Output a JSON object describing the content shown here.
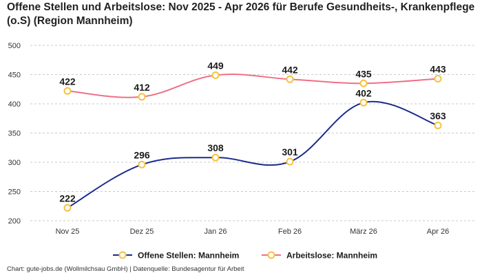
{
  "title": "Offene Stellen und Arbeitslose: Nov 2025 - Apr 2026 für Berufe Gesundheits-, Krankenpflege (o.S) (Region Mannheim)",
  "credit": "Chart: gute-jobs.de (Wollmilchsau GmbH) | Datenquelle: Bundesagentur für Arbeit",
  "chart_data": {
    "type": "line",
    "categories": [
      "Nov 25",
      "Dez 25",
      "Jan 26",
      "Feb 26",
      "März 26",
      "Apr 26"
    ],
    "ylim": [
      200,
      500
    ],
    "yticks": [
      200,
      250,
      300,
      350,
      400,
      450,
      500
    ],
    "grid": true,
    "legend": "bottom",
    "series": [
      {
        "name": "Offene Stellen: Mannheim",
        "color": "#1a2a8a",
        "values": [
          222,
          296,
          308,
          301,
          402,
          363
        ]
      },
      {
        "name": "Arbeitslose: Mannheim",
        "color": "#f06e84",
        "values": [
          422,
          412,
          449,
          442,
          435,
          443
        ]
      }
    ],
    "marker_color": "#f5c242"
  }
}
